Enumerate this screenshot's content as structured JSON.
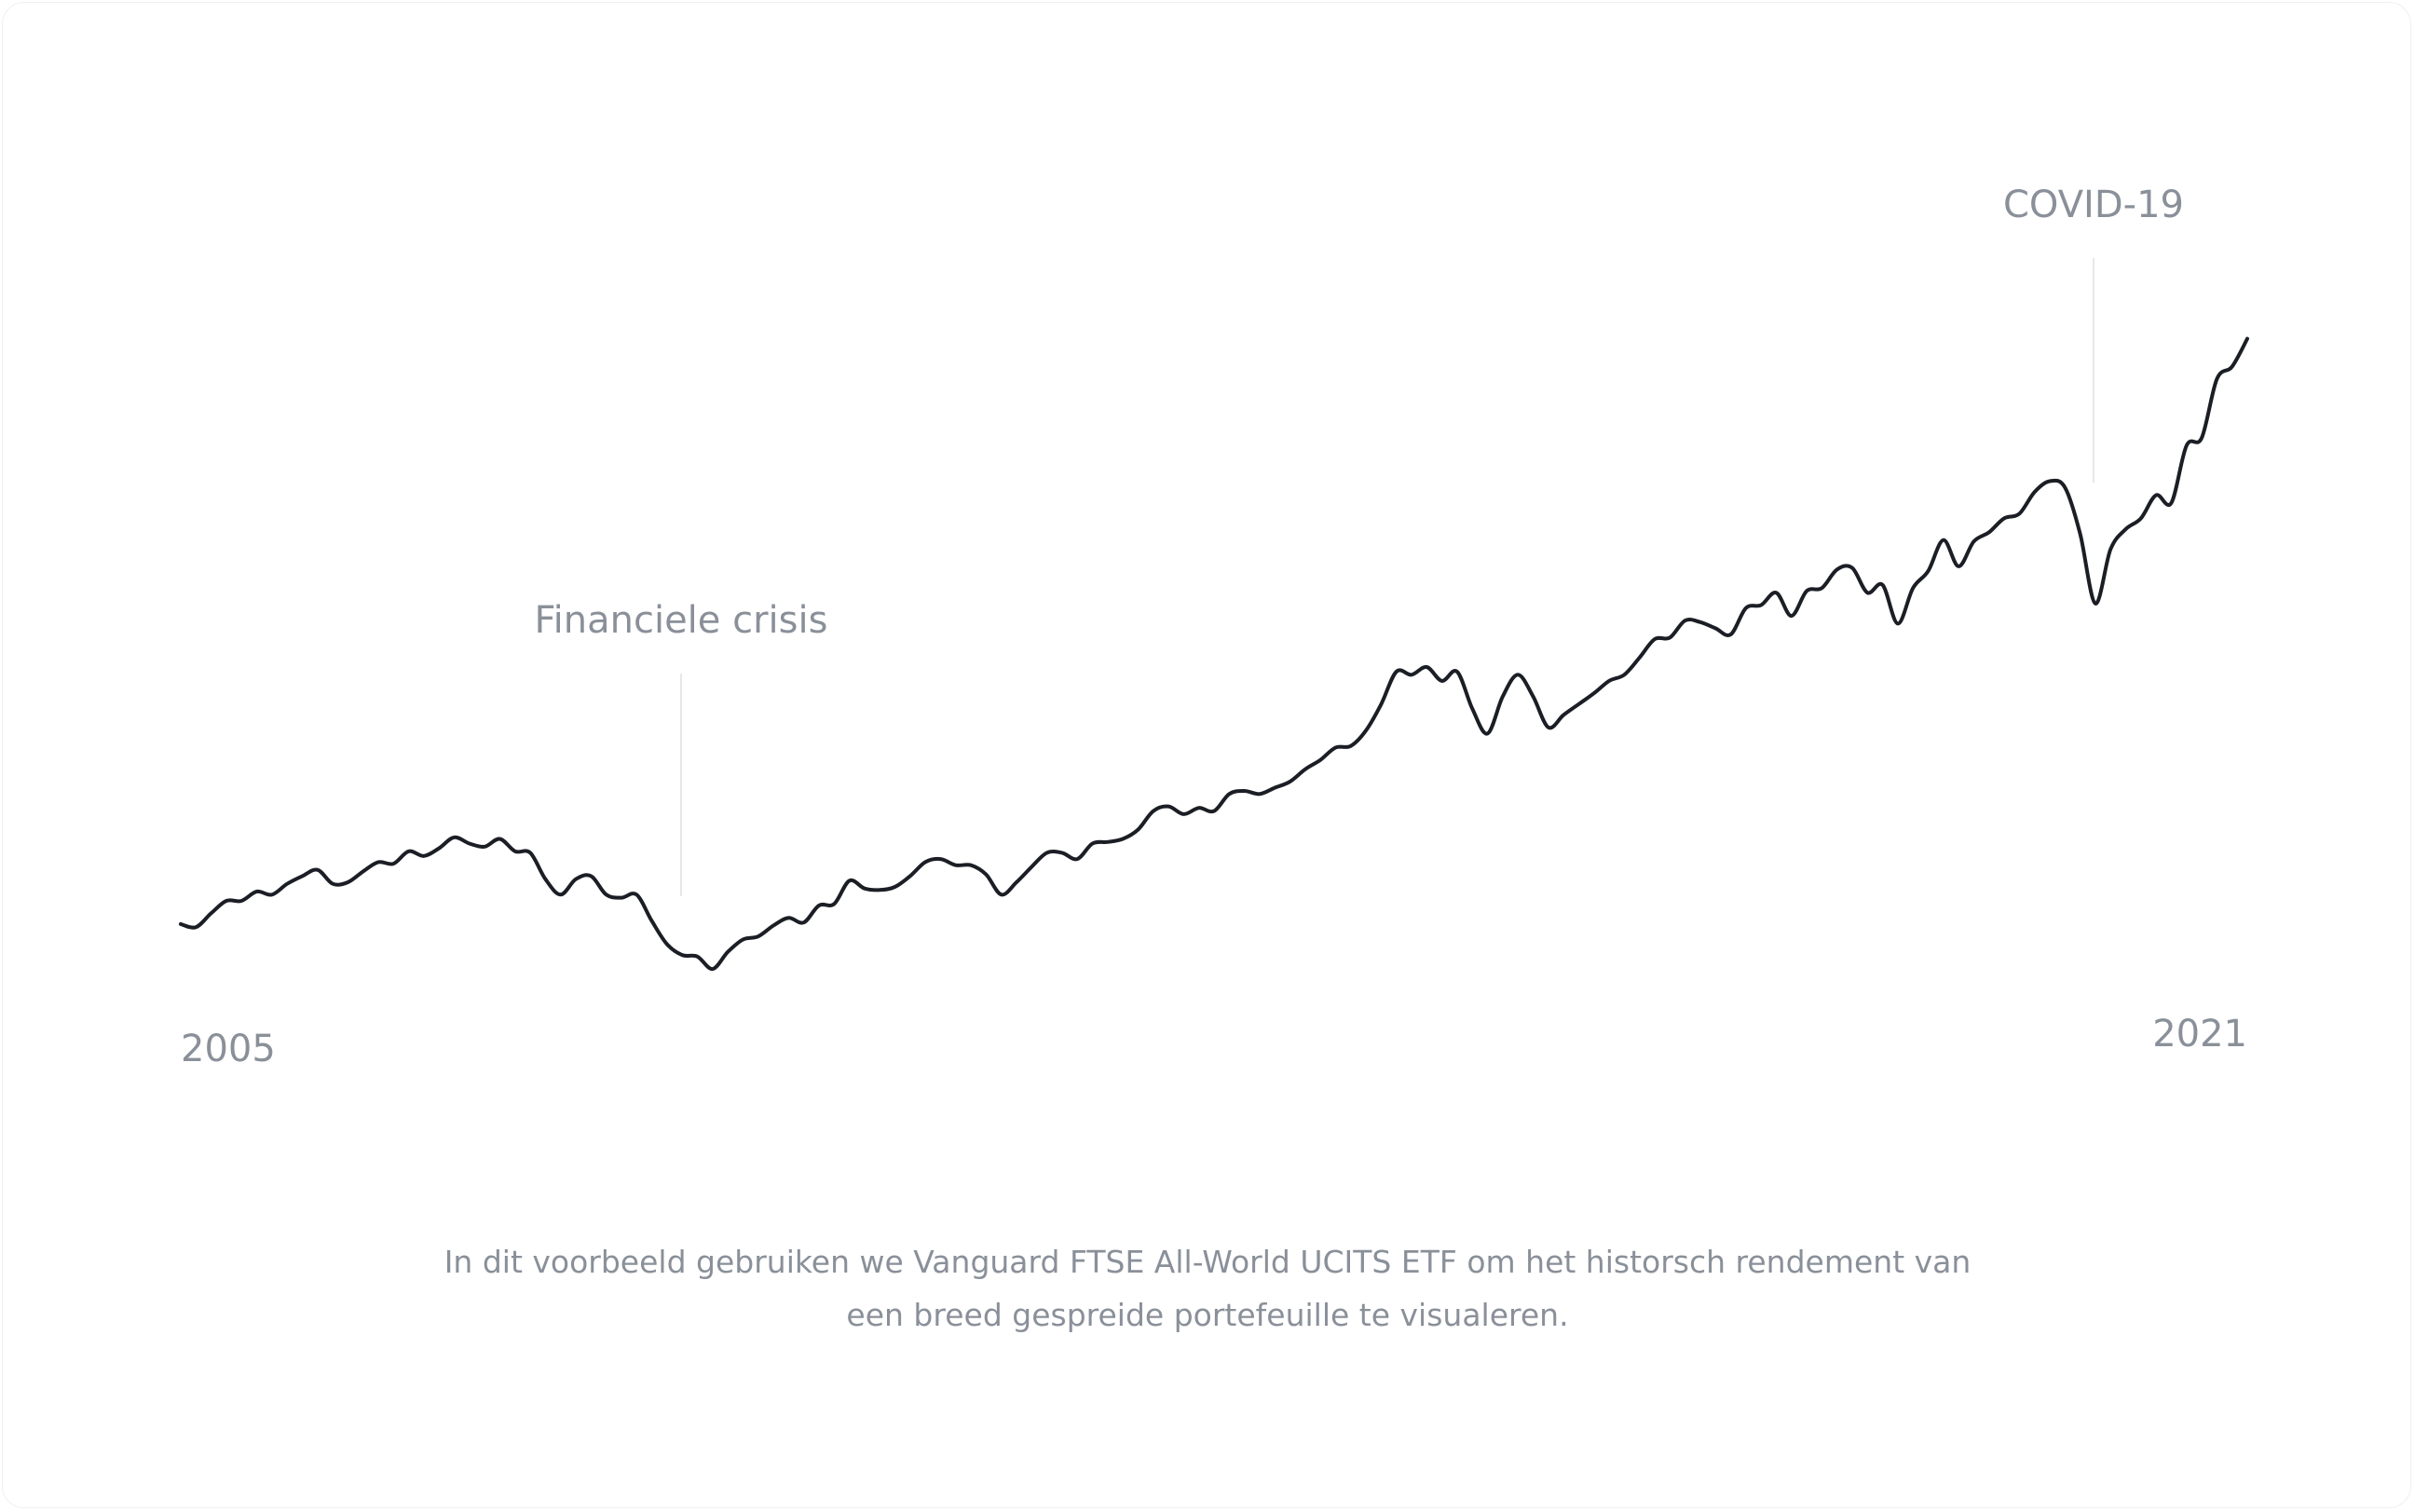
{
  "chart_data": {
    "type": "line",
    "categories": [
      "2005",
      null,
      null,
      null,
      null,
      null,
      null,
      null,
      null,
      null,
      null,
      null,
      null,
      null,
      null,
      null,
      null,
      null,
      null,
      null,
      null,
      null,
      null,
      null,
      null,
      null,
      null,
      null,
      null,
      null,
      null,
      null,
      null,
      null,
      null,
      null,
      null,
      null,
      null,
      null,
      null,
      null,
      null,
      null,
      null,
      null,
      null,
      null,
      null,
      null,
      null,
      null,
      null,
      null,
      null,
      null,
      null,
      null,
      null,
      null,
      null,
      null,
      null,
      null,
      null,
      null,
      null,
      null,
      null,
      null,
      null,
      null,
      null,
      null,
      null,
      null,
      null,
      null,
      null,
      null,
      null,
      null,
      null,
      null,
      null,
      null,
      null,
      null,
      null,
      null,
      null,
      null,
      null,
      null,
      null,
      null,
      null,
      null,
      null,
      null,
      null,
      null,
      null,
      null,
      null,
      null,
      null,
      null,
      null,
      null,
      null,
      null,
      null,
      null,
      null,
      null,
      null,
      null,
      null,
      null,
      null,
      null,
      null,
      null,
      null,
      null,
      null,
      null,
      null,
      null,
      null,
      null,
      null,
      null,
      null,
      null,
      "2021"
    ],
    "values": [
      53,
      51,
      60,
      68,
      68,
      74,
      72,
      79,
      84,
      88,
      79,
      80,
      87,
      93,
      92,
      100,
      97,
      102,
      109,
      105,
      103,
      108,
      100,
      99,
      82,
      72,
      82,
      84,
      72,
      70,
      72,
      55,
      40,
      33,
      32,
      24,
      35,
      43,
      45,
      52,
      57,
      54,
      65,
      66,
      81,
      76,
      75,
      77,
      84,
      93,
      95,
      91,
      91,
      85,
      72,
      80,
      90,
      99,
      99,
      95,
      105,
      106,
      108,
      114,
      126,
      129,
      124,
      128,
      126,
      137,
      139,
      137,
      141,
      145,
      153,
      159,
      167,
      168,
      178,
      195,
      216,
      214,
      219,
      210,
      216,
      192,
      176,
      200,
      214,
      200,
      180,
      188,
      195,
      202,
      210,
      214,
      225,
      237,
      238,
      249,
      248,
      244,
      240,
      257,
      259,
      267,
      252,
      268,
      270,
      282,
      283,
      267,
      272,
      247,
      270,
      281,
      301,
      284,
      300,
      306,
      315,
      318,
      332,
      339,
      335,
      305,
      260,
      295,
      308,
      315,
      330,
      325,
      362,
      367,
      405,
      413,
      431
    ],
    "color": "#1b1e25",
    "ylim": [
      0,
      450
    ],
    "annotations": [
      "Financiele crisis",
      "COVID-19"
    ],
    "caption": "In dit voorbeeld gebruiken we Vanguard FTSE All-World UCITS ETF om het historsch rendement van een breed gespreide portefeuille te visualeren."
  }
}
